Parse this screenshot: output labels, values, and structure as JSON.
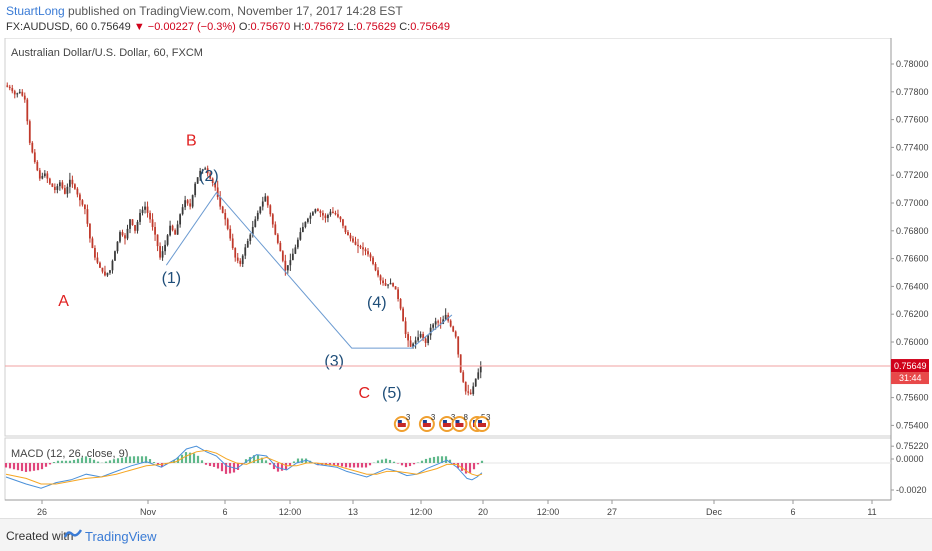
{
  "header": {
    "author": "StuartLong",
    "published_text": " published on TradingView.com, November 17, 2017 14:28 EST",
    "symbol_line": "FX:AUDUSD, 60",
    "last": "0.75649",
    "change": "−0.00227 (−0.3%)",
    "o_label": "O:",
    "o_value": "0.75670",
    "h_label": "H:",
    "h_value": "0.75672",
    "l_label": "L:",
    "l_value": "0.75629",
    "c_label": "C:",
    "c_value": "0.75649"
  },
  "chart_data": {
    "type": "candlestick",
    "title": "Australian Dollar/U.S. Dollar, 60, FXCM",
    "ylim": [
      0.7521,
      0.7805
    ],
    "y_ticks": [
      "0.78000",
      "0.77800",
      "0.77600",
      "0.77400",
      "0.77200",
      "0.77000",
      "0.76800",
      "0.76600",
      "0.76400",
      "0.76200",
      "0.76000",
      "0.75800",
      "0.75600",
      "0.75400",
      "0.75220"
    ],
    "x_ticks": [
      "26",
      "Nov",
      "6",
      "12:00",
      "13",
      "12:00",
      "20",
      "12:00",
      "27",
      "Dec",
      "6",
      "11"
    ],
    "current_price_label": "0.75649",
    "countdown_label": "31:44",
    "current_price": 0.75649,
    "price_path": [
      [
        0,
        0.7785
      ],
      [
        1,
        0.7783
      ],
      [
        2,
        0.7778
      ],
      [
        3,
        0.778
      ],
      [
        4,
        0.7774
      ],
      [
        5,
        0.774
      ],
      [
        6,
        0.7725
      ],
      [
        7,
        0.7712
      ],
      [
        8,
        0.7716
      ],
      [
        9,
        0.7708
      ],
      [
        10,
        0.7703
      ],
      [
        11,
        0.7709
      ],
      [
        12,
        0.77
      ],
      [
        13,
        0.7711
      ],
      [
        14,
        0.7704
      ],
      [
        15,
        0.7695
      ],
      [
        16,
        0.7688
      ],
      [
        17,
        0.7665
      ],
      [
        18,
        0.765
      ],
      [
        19,
        0.7642
      ],
      [
        20,
        0.7636
      ],
      [
        21,
        0.764
      ],
      [
        22,
        0.7655
      ],
      [
        23,
        0.767
      ],
      [
        24,
        0.7665
      ],
      [
        25,
        0.768
      ],
      [
        26,
        0.7671
      ],
      [
        27,
        0.7685
      ],
      [
        28,
        0.769
      ],
      [
        29,
        0.768
      ],
      [
        30,
        0.7668
      ],
      [
        31,
        0.765
      ],
      [
        32,
        0.766
      ],
      [
        33,
        0.7675
      ],
      [
        34,
        0.7668
      ],
      [
        35,
        0.7684
      ],
      [
        36,
        0.7695
      ],
      [
        37,
        0.769
      ],
      [
        38,
        0.7708
      ],
      [
        39,
        0.7718
      ],
      [
        40,
        0.772
      ],
      [
        41,
        0.7712
      ],
      [
        42,
        0.7705
      ],
      [
        43,
        0.769
      ],
      [
        44,
        0.768
      ],
      [
        45,
        0.7665
      ],
      [
        46,
        0.765
      ],
      [
        47,
        0.7645
      ],
      [
        48,
        0.7658
      ],
      [
        49,
        0.7668
      ],
      [
        50,
        0.768
      ],
      [
        51,
        0.769
      ],
      [
        52,
        0.7698
      ],
      [
        53,
        0.7684
      ],
      [
        54,
        0.7668
      ],
      [
        55,
        0.7655
      ],
      [
        56,
        0.764
      ],
      [
        57,
        0.7648
      ],
      [
        58,
        0.7658
      ],
      [
        59,
        0.767
      ],
      [
        60,
        0.7678
      ],
      [
        61,
        0.7683
      ],
      [
        62,
        0.7688
      ],
      [
        63,
        0.7685
      ],
      [
        64,
        0.7681
      ],
      [
        65,
        0.7686
      ],
      [
        66,
        0.7684
      ],
      [
        67,
        0.768
      ],
      [
        68,
        0.767
      ],
      [
        69,
        0.7665
      ],
      [
        70,
        0.766
      ],
      [
        71,
        0.7658
      ],
      [
        72,
        0.7655
      ],
      [
        73,
        0.765
      ],
      [
        74,
        0.764
      ],
      [
        75,
        0.7632
      ],
      [
        76,
        0.7628
      ],
      [
        77,
        0.763
      ],
      [
        78,
        0.7625
      ],
      [
        79,
        0.761
      ],
      [
        80,
        0.759
      ],
      [
        81,
        0.758
      ],
      [
        82,
        0.7585
      ],
      [
        83,
        0.759
      ],
      [
        84,
        0.7583
      ],
      [
        85,
        0.7595
      ],
      [
        86,
        0.76
      ],
      [
        87,
        0.7598
      ],
      [
        88,
        0.7605
      ],
      [
        89,
        0.7596
      ],
      [
        90,
        0.7588
      ],
      [
        91,
        0.756
      ],
      [
        92,
        0.7545
      ],
      [
        93,
        0.7543
      ],
      [
        94,
        0.7555
      ],
      [
        95,
        0.75649
      ]
    ],
    "wave_line": [
      [
        32,
        0.7644
      ],
      [
        42,
        0.7701
      ],
      [
        69,
        0.7579
      ],
      [
        81,
        0.7579
      ],
      [
        89,
        0.7605
      ]
    ],
    "annotations": [
      {
        "text": "A",
        "t": 11.5,
        "price": 0.7612,
        "color": "red"
      },
      {
        "text": "B",
        "t": 37,
        "price": 0.7738,
        "color": "red"
      },
      {
        "text": "(1)",
        "t": 33,
        "price": 0.763,
        "color": "blue"
      },
      {
        "text": "(2)",
        "t": 40.5,
        "price": 0.771,
        "color": "blue"
      },
      {
        "text": "(3)",
        "t": 65.5,
        "price": 0.7565,
        "color": "blue"
      },
      {
        "text": "(4)",
        "t": 74,
        "price": 0.7611,
        "color": "blue"
      },
      {
        "text": "C",
        "t": 71.5,
        "price": 0.754,
        "color": "red"
      },
      {
        "text": "(5)",
        "t": 77,
        "price": 0.754,
        "color": "blue"
      }
    ],
    "events": [
      {
        "t": 79,
        "count": "3"
      },
      {
        "t": 84,
        "count": "3"
      },
      {
        "t": 88,
        "count": "3"
      },
      {
        "t": 90.5,
        "count": "8"
      },
      {
        "t": 94,
        "count": "5"
      },
      {
        "t": 95,
        "count": "3"
      }
    ],
    "macd": {
      "label": "MACD (12, 26, close, 9)",
      "ylim": [
        -0.0025,
        0.0015
      ],
      "y_ticks": [
        "0.0000",
        "-0.0020"
      ],
      "macd_line": [
        [
          0,
          -0.001
        ],
        [
          4,
          -0.0015
        ],
        [
          7,
          -0.0018
        ],
        [
          10,
          -0.0014
        ],
        [
          13,
          -0.0012
        ],
        [
          16,
          -0.0008
        ],
        [
          19,
          -0.001
        ],
        [
          22,
          -0.0006
        ],
        [
          25,
          -0.0002
        ],
        [
          28,
          0.0001
        ],
        [
          31,
          -0.0003
        ],
        [
          34,
          0.0003
        ],
        [
          36,
          0.001
        ],
        [
          38,
          0.0012
        ],
        [
          40,
          0.0008
        ],
        [
          42,
          0.0005
        ],
        [
          44,
          -0.0002
        ],
        [
          46,
          -0.0004
        ],
        [
          48,
          0.0001
        ],
        [
          50,
          0.0006
        ],
        [
          52,
          0.0005
        ],
        [
          54,
          -0.0003
        ],
        [
          56,
          -0.0005
        ],
        [
          58,
          0.0
        ],
        [
          60,
          0.0002
        ],
        [
          62,
          -0.0001
        ],
        [
          64,
          -0.0002
        ],
        [
          66,
          -0.0003
        ],
        [
          68,
          -0.0006
        ],
        [
          70,
          -0.0008
        ],
        [
          72,
          -0.001
        ],
        [
          74,
          -0.0007
        ],
        [
          76,
          -0.0004
        ],
        [
          78,
          -0.0006
        ],
        [
          80,
          -0.0009
        ],
        [
          82,
          -0.0008
        ],
        [
          84,
          -0.0004
        ],
        [
          86,
          -0.0001
        ],
        [
          88,
          0.0002
        ],
        [
          90,
          -0.0003
        ],
        [
          92,
          -0.0011
        ],
        [
          93,
          -0.0012
        ],
        [
          94,
          -0.001
        ],
        [
          95,
          -0.0007
        ]
      ],
      "signal_line": [
        [
          0,
          -0.0008
        ],
        [
          4,
          -0.0011
        ],
        [
          7,
          -0.0015
        ],
        [
          10,
          -0.0015
        ],
        [
          13,
          -0.0013
        ],
        [
          16,
          -0.0011
        ],
        [
          19,
          -0.001
        ],
        [
          22,
          -0.0008
        ],
        [
          25,
          -0.0005
        ],
        [
          28,
          -0.0002
        ],
        [
          31,
          -0.0001
        ],
        [
          34,
          0.0001
        ],
        [
          36,
          0.0005
        ],
        [
          38,
          0.0008
        ],
        [
          40,
          0.0009
        ],
        [
          42,
          0.0007
        ],
        [
          44,
          0.0003
        ],
        [
          46,
          0.0
        ],
        [
          48,
          -0.0001
        ],
        [
          50,
          0.0002
        ],
        [
          52,
          0.0004
        ],
        [
          54,
          0.0001
        ],
        [
          56,
          -0.0002
        ],
        [
          58,
          -0.0002
        ],
        [
          60,
          0.0
        ],
        [
          62,
          0.0
        ],
        [
          64,
          -0.0001
        ],
        [
          66,
          -0.0002
        ],
        [
          68,
          -0.0004
        ],
        [
          70,
          -0.0006
        ],
        [
          72,
          -0.0008
        ],
        [
          74,
          -0.0008
        ],
        [
          76,
          -0.0006
        ],
        [
          78,
          -0.0006
        ],
        [
          80,
          -0.0007
        ],
        [
          82,
          -0.0008
        ],
        [
          84,
          -0.0006
        ],
        [
          86,
          -0.0004
        ],
        [
          88,
          -0.0001
        ],
        [
          90,
          -0.0001
        ],
        [
          92,
          -0.0006
        ],
        [
          93,
          -0.0008
        ],
        [
          94,
          -0.0009
        ],
        [
          95,
          -0.0008
        ]
      ]
    }
  },
  "footer": {
    "created_with": "Created with",
    "brand": "TradingView"
  },
  "colors": {
    "up": "#3a3a3a",
    "down": "#c0392b",
    "wave_line": "#6c9bd1",
    "macd": "#4a90d9",
    "signal": "#f5a623",
    "hist_pos": "#5fb88a",
    "hist_neg": "#e0457b",
    "price_line": "#f0a0a0",
    "price_label_bg": "#d0021b",
    "countdown_bg": "#e8494a"
  }
}
